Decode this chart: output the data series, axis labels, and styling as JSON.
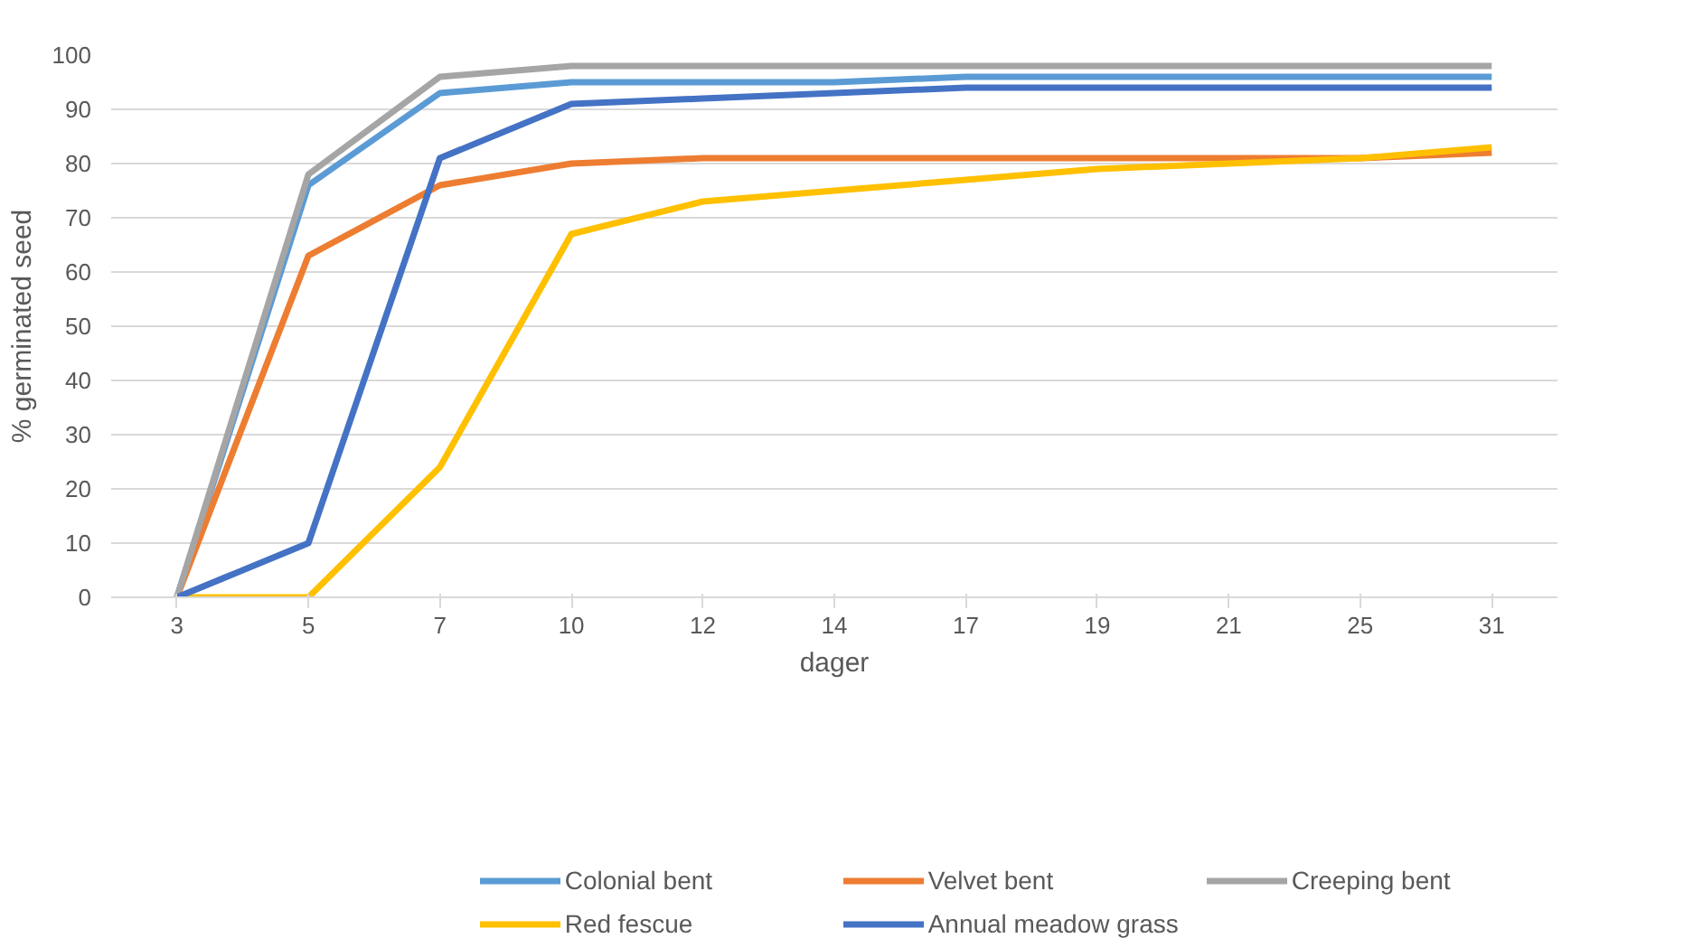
{
  "chart_data": {
    "type": "line",
    "xlabel": "dager",
    "ylabel": "% germinated seed",
    "categories": [
      "3",
      "5",
      "7",
      "10",
      "12",
      "14",
      "17",
      "19",
      "21",
      "25",
      "31"
    ],
    "ylim": [
      0,
      100
    ],
    "yticks": [
      0,
      10,
      20,
      30,
      40,
      50,
      60,
      70,
      80,
      90,
      100
    ],
    "grid": "y",
    "legend": "bottom",
    "marker": "none",
    "line_style": "solid",
    "series": [
      {
        "name": "Colonial bent",
        "color": "#5b9bd5",
        "values": [
          0,
          76,
          93,
          95,
          95,
          95,
          96,
          96,
          96,
          96,
          96
        ]
      },
      {
        "name": "Velvet bent",
        "color": "#ed7d31",
        "values": [
          0,
          63,
          76,
          80,
          81,
          81,
          81,
          81,
          81,
          81,
          82
        ]
      },
      {
        "name": "Creeping bent",
        "color": "#a5a5a5",
        "values": [
          0,
          78,
          96,
          98,
          98,
          98,
          98,
          98,
          98,
          98,
          98
        ]
      },
      {
        "name": "Red fescue",
        "color": "#ffc000",
        "values": [
          0,
          0,
          24,
          67,
          73,
          75,
          77,
          79,
          80,
          81,
          83
        ]
      },
      {
        "name": "Annual meadow grass",
        "color": "#4472c4",
        "values": [
          0,
          10,
          81,
          91,
          92,
          93,
          94,
          94,
          94,
          94,
          94
        ]
      }
    ]
  }
}
